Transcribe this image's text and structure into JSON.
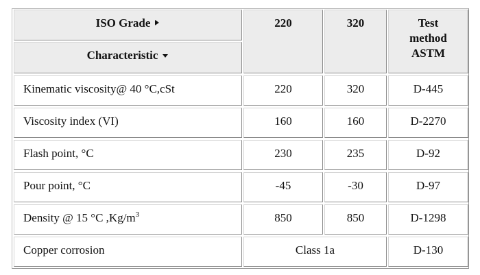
{
  "table": {
    "header": {
      "iso_grade": "ISO Grade",
      "characteristic": "Characteristic",
      "grades": [
        "220",
        "320"
      ],
      "test_method": "Test method ASTM"
    },
    "rows": [
      {
        "characteristic": "Kinematic viscosity@ 40 °C,cSt",
        "values": [
          "220",
          "320"
        ],
        "method": "D-445"
      },
      {
        "characteristic": "Viscosity index (VI)",
        "values": [
          "160",
          "160"
        ],
        "method": "D-2270"
      },
      {
        "characteristic": "Flash point, °C",
        "values": [
          "230",
          "235"
        ],
        "method": "D-92"
      },
      {
        "characteristic": "Pour point, °C",
        "values": [
          "-45",
          "-30"
        ],
        "method": "D-97"
      },
      {
        "characteristic": "Density @ 15 °C ,Kg/m",
        "superscript": "3",
        "values": [
          "850",
          "850"
        ],
        "method": "D-1298"
      },
      {
        "characteristic": "Copper corrosion",
        "values": [
          "Class 1a"
        ],
        "method": "D-130"
      }
    ]
  }
}
